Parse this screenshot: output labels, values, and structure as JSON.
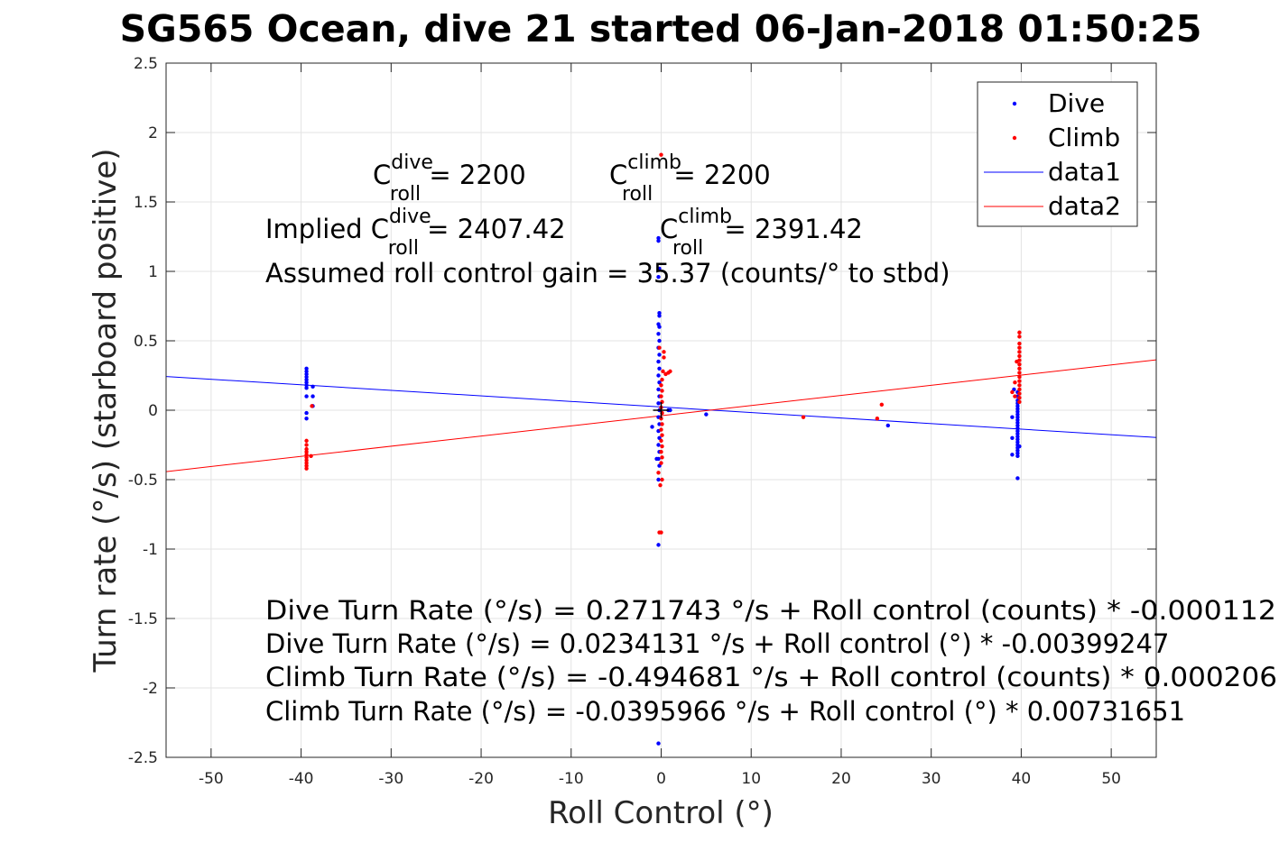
{
  "chart_data": {
    "type": "scatter",
    "title": "SG565 Ocean, dive 21 started 06-Jan-2018 01:50:25",
    "xlabel": "Roll Control (°)",
    "ylabel": "Turn rate (°/s) (starboard positive)",
    "xlim": [
      -55,
      55
    ],
    "ylim": [
      -2.5,
      2.5
    ],
    "xticks": [
      "-50",
      "-40",
      "-30",
      "-20",
      "-10",
      "0",
      "10",
      "20",
      "30",
      "40",
      "50"
    ],
    "yticks": [
      "2.5",
      "2",
      "1.5",
      "1",
      "0.5",
      "0",
      "-0.5",
      "-1",
      "-1.5",
      "-2",
      "-2.5"
    ],
    "grid": true,
    "legend_position": "top-right",
    "legend": [
      "Dive",
      "Climb",
      "data1",
      "data2"
    ],
    "colors": {
      "dive": "#0000ff",
      "climb": "#ff0000",
      "crosshair": "#000000"
    },
    "series": [
      {
        "name": "Dive",
        "type": "scatter",
        "points": [
          [
            -39.4,
            0.3
          ],
          [
            -39.4,
            0.28
          ],
          [
            -39.4,
            0.26
          ],
          [
            -39.4,
            0.24
          ],
          [
            -39.4,
            0.22
          ],
          [
            -39.4,
            0.2
          ],
          [
            -39.4,
            0.18
          ],
          [
            -39.4,
            0.16
          ],
          [
            -39.4,
            0.1
          ],
          [
            -39.4,
            -0.02
          ],
          [
            -39.4,
            -0.06
          ],
          [
            -38.7,
            0.1
          ],
          [
            -38.7,
            0.17
          ],
          [
            -38.7,
            0.03
          ],
          [
            -0.3,
            1.24
          ],
          [
            -0.3,
            1.22
          ],
          [
            -0.2,
            1.02
          ],
          [
            -0.3,
            0.96
          ],
          [
            -0.2,
            0.7
          ],
          [
            -0.2,
            0.68
          ],
          [
            -0.3,
            0.62
          ],
          [
            -0.2,
            0.6
          ],
          [
            -0.3,
            0.55
          ],
          [
            -0.2,
            0.5
          ],
          [
            -0.3,
            0.45
          ],
          [
            -0.2,
            0.4
          ],
          [
            -0.3,
            0.35
          ],
          [
            -0.2,
            0.3
          ],
          [
            -0.3,
            0.25
          ],
          [
            -0.2,
            0.2
          ],
          [
            -0.3,
            0.15
          ],
          [
            -0.2,
            0.1
          ],
          [
            -0.3,
            0.05
          ],
          [
            -0.2,
            0.0
          ],
          [
            -0.3,
            -0.05
          ],
          [
            -0.2,
            -0.1
          ],
          [
            -0.3,
            -0.15
          ],
          [
            -0.2,
            -0.2
          ],
          [
            -0.3,
            -0.25
          ],
          [
            -0.2,
            -0.3
          ],
          [
            -0.3,
            -0.35
          ],
          [
            -0.2,
            -0.4
          ],
          [
            -0.3,
            -0.5
          ],
          [
            -0.3,
            -0.97
          ],
          [
            -0.3,
            -2.4
          ],
          [
            -1.0,
            -0.12
          ],
          [
            -0.5,
            -0.35
          ],
          [
            0.8,
            0.0
          ],
          [
            1.0,
            0.0
          ],
          [
            5.0,
            -0.03
          ],
          [
            25.2,
            -0.11
          ],
          [
            39.6,
            0.13
          ],
          [
            39.6,
            0.1
          ],
          [
            39.6,
            0.07
          ],
          [
            39.6,
            0.05
          ],
          [
            39.6,
            0.03
          ],
          [
            39.6,
            0.01
          ],
          [
            39.6,
            -0.01
          ],
          [
            39.6,
            -0.03
          ],
          [
            39.6,
            -0.05
          ],
          [
            39.6,
            -0.07
          ],
          [
            39.6,
            -0.09
          ],
          [
            39.6,
            -0.11
          ],
          [
            39.6,
            -0.13
          ],
          [
            39.6,
            -0.15
          ],
          [
            39.6,
            -0.17
          ],
          [
            39.6,
            -0.19
          ],
          [
            39.6,
            -0.21
          ],
          [
            39.6,
            -0.23
          ],
          [
            39.6,
            -0.25
          ],
          [
            39.6,
            -0.27
          ],
          [
            39.6,
            -0.29
          ],
          [
            39.6,
            -0.31
          ],
          [
            39.6,
            -0.33
          ],
          [
            39.6,
            -0.49
          ],
          [
            39.0,
            -0.2
          ],
          [
            39.0,
            -0.32
          ],
          [
            39.0,
            -0.05
          ],
          [
            39.2,
            0.15
          ],
          [
            39.8,
            -0.26
          ]
        ]
      },
      {
        "name": "Climb",
        "type": "scatter",
        "points": [
          [
            -39.4,
            -0.22
          ],
          [
            -39.4,
            -0.25
          ],
          [
            -39.4,
            -0.28
          ],
          [
            -39.4,
            -0.3
          ],
          [
            -39.4,
            -0.32
          ],
          [
            -39.4,
            -0.34
          ],
          [
            -39.4,
            -0.36
          ],
          [
            -39.4,
            -0.38
          ],
          [
            -39.4,
            -0.4
          ],
          [
            -39.4,
            -0.42
          ],
          [
            -38.8,
            0.03
          ],
          [
            -38.9,
            -0.33
          ],
          [
            0.0,
            1.84
          ],
          [
            0.3,
            0.38
          ],
          [
            -0.2,
            0.45
          ],
          [
            0.3,
            0.42
          ],
          [
            0.2,
            0.28
          ],
          [
            0.5,
            0.26
          ],
          [
            0.8,
            0.27
          ],
          [
            1.0,
            0.28
          ],
          [
            0.1,
            0.22
          ],
          [
            0.0,
            0.18
          ],
          [
            0.1,
            0.14
          ],
          [
            0.0,
            0.1
          ],
          [
            0.1,
            0.06
          ],
          [
            0.0,
            0.02
          ],
          [
            0.1,
            -0.02
          ],
          [
            0.0,
            -0.06
          ],
          [
            0.1,
            -0.1
          ],
          [
            0.0,
            -0.14
          ],
          [
            0.1,
            -0.18
          ],
          [
            0.0,
            -0.22
          ],
          [
            0.1,
            -0.26
          ],
          [
            0.0,
            -0.3
          ],
          [
            0.1,
            -0.34
          ],
          [
            0.0,
            -0.38
          ],
          [
            -0.3,
            -0.45
          ],
          [
            0.1,
            -0.5
          ],
          [
            -0.1,
            -0.54
          ],
          [
            0.0,
            -0.88
          ],
          [
            -0.2,
            -0.88
          ],
          [
            15.8,
            -0.05
          ],
          [
            24.0,
            -0.06
          ],
          [
            24.5,
            0.04
          ],
          [
            39.8,
            0.56
          ],
          [
            39.8,
            0.53
          ],
          [
            39.8,
            0.48
          ],
          [
            39.8,
            0.45
          ],
          [
            39.8,
            0.42
          ],
          [
            39.8,
            0.39
          ],
          [
            39.8,
            0.36
          ],
          [
            39.8,
            0.33
          ],
          [
            39.8,
            0.3
          ],
          [
            39.8,
            0.27
          ],
          [
            39.8,
            0.24
          ],
          [
            39.8,
            0.21
          ],
          [
            39.8,
            0.18
          ],
          [
            39.8,
            0.15
          ],
          [
            39.8,
            0.12
          ],
          [
            39.8,
            0.09
          ],
          [
            39.8,
            0.06
          ],
          [
            39.3,
            0.2
          ],
          [
            39.3,
            0.1
          ],
          [
            39.0,
            0.13
          ],
          [
            39.5,
            0.35
          ]
        ]
      },
      {
        "name": "data1",
        "type": "line",
        "x": [
          -55,
          55
        ],
        "y": [
          0.243,
          -0.1962
        ]
      },
      {
        "name": "data2",
        "type": "line",
        "x": [
          -55,
          55
        ],
        "y": [
          -0.442,
          0.3628
        ]
      }
    ],
    "crosshair": {
      "x": 0,
      "y": 0
    }
  },
  "annotations": {
    "c_dive": {
      "prefix": "",
      "base": "C",
      "sup": "dive",
      "sub": "roll",
      "value": " = 2200"
    },
    "c_climb": {
      "prefix": "",
      "base": "C",
      "sup": "climb",
      "sub": "roll",
      "value": " = 2200"
    },
    "implied_dive": {
      "prefix": "Implied ",
      "base": "C",
      "sup": "dive",
      "sub": "roll",
      "value": " = 2407.42"
    },
    "implied_climb": {
      "prefix": "",
      "base": "C",
      "sup": "climb",
      "sub": "roll",
      "value": " = 2391.42"
    },
    "gain": "Assumed roll control gain = 35.37 (counts/° to stbd)",
    "fit_lines": [
      "Dive Turn Rate (°/s) = 0.271743 °/s + Roll control (counts) * -0.000112",
      "Dive Turn Rate (°/s) = 0.0234131 °/s + Roll control (°) * -0.00399247",
      "Climb Turn Rate (°/s) = -0.494681 °/s + Roll control (counts) * 0.000206",
      "Climb Turn Rate (°/s) = -0.0395966 °/s + Roll control (°) * 0.00731651"
    ]
  }
}
